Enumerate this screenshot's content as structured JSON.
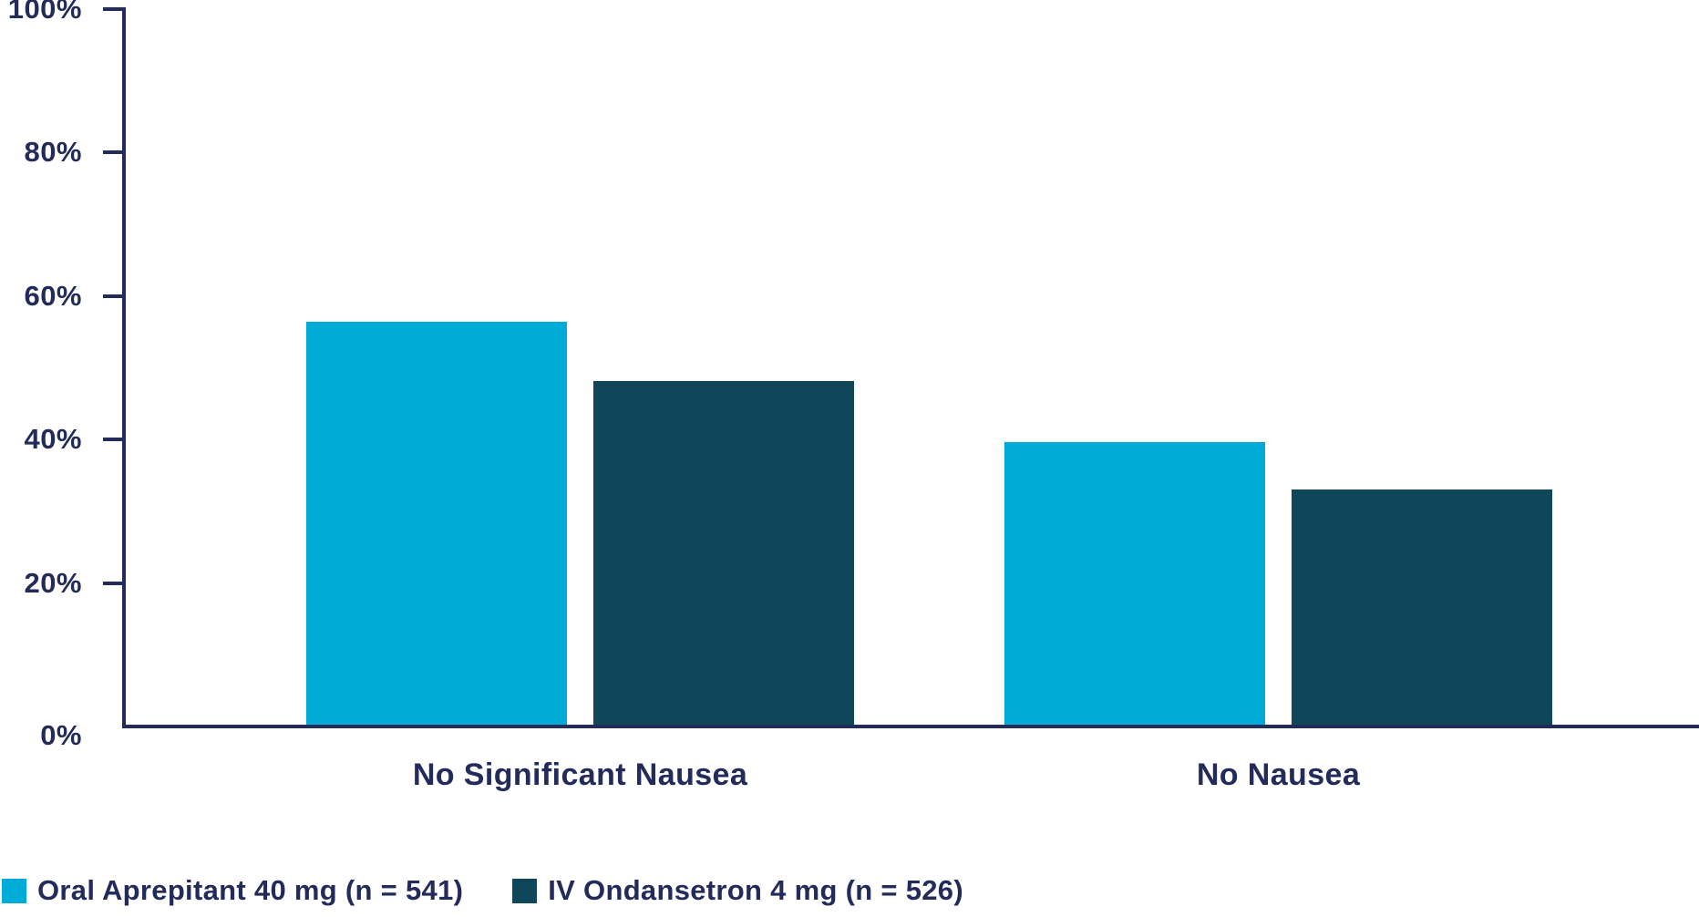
{
  "chart_data": {
    "type": "bar",
    "title": "",
    "xlabel": "",
    "ylabel": "",
    "ylim": [
      0,
      100
    ],
    "grid": false,
    "legend_position": "bottom-left",
    "categories": [
      "No Significant Nausea",
      "No Nausea"
    ],
    "yticks": [
      {
        "value": 0,
        "label": "0%"
      },
      {
        "value": 20,
        "label": "20%"
      },
      {
        "value": 40,
        "label": "40%"
      },
      {
        "value": 60,
        "label": "60%"
      },
      {
        "value": 80,
        "label": "80%"
      },
      {
        "value": 100,
        "label": "100%"
      }
    ],
    "series": [
      {
        "name": "Oral Aprepitant 40 mg (n = 541)",
        "key": "oral-aprepitant-40mg",
        "color": "#00ABD8",
        "values": [
          56.4,
          39.6
        ]
      },
      {
        "name": "IV Ondansetron 4 mg (n = 526)",
        "key": "iv-ondansetron-4mg",
        "color": "#0F4659",
        "values": [
          48.1,
          33.1
        ]
      }
    ]
  },
  "colors": {
    "accent_light_blue": "#00ABD8",
    "accent_dark_teal": "#0F4659",
    "text_navy": "#222B5A",
    "background": "#FFFFFF"
  }
}
